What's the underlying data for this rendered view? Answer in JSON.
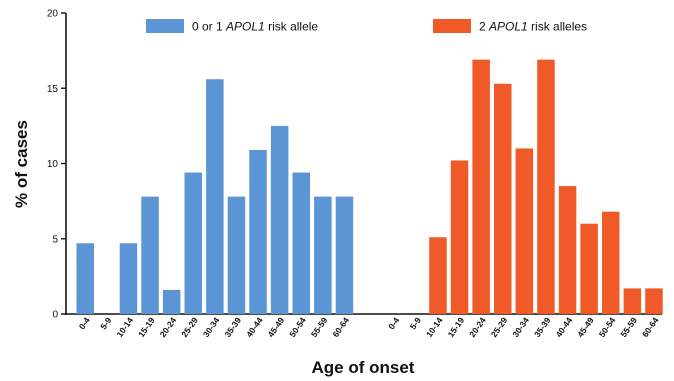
{
  "chart_data": {
    "type": "bar",
    "xlabel": "Age of onset",
    "ylabel": "% of cases",
    "ylim": [
      0,
      20
    ],
    "yticks": [
      "0",
      "5",
      "10",
      "15",
      "20"
    ],
    "grid": false,
    "legend_placement": "top",
    "categories": [
      "0-4",
      "5-9",
      "10-14",
      "15-19",
      "20-24",
      "25-29",
      "30-34",
      "35-39",
      "40-44",
      "45-49",
      "50-54",
      "55-59",
      "60-64"
    ],
    "series": [
      {
        "name": "0 or 1 APOL1 risk allele",
        "legend_parts": [
          "0 or 1 ",
          "APOL1",
          " risk allele"
        ],
        "color": "#5b95d5",
        "values": [
          4.7,
          0,
          4.7,
          7.8,
          1.6,
          9.4,
          15.6,
          7.8,
          10.9,
          12.5,
          9.4,
          7.8,
          7.8
        ]
      },
      {
        "name": "2 APOL1 risk alleles",
        "legend_parts": [
          "2 ",
          "APOL1",
          " risk alleles"
        ],
        "color": "#ef5a28",
        "values": [
          0,
          0,
          5.1,
          10.2,
          16.9,
          15.3,
          11.0,
          16.9,
          8.5,
          6.0,
          6.8,
          1.7,
          1.7
        ]
      }
    ]
  }
}
